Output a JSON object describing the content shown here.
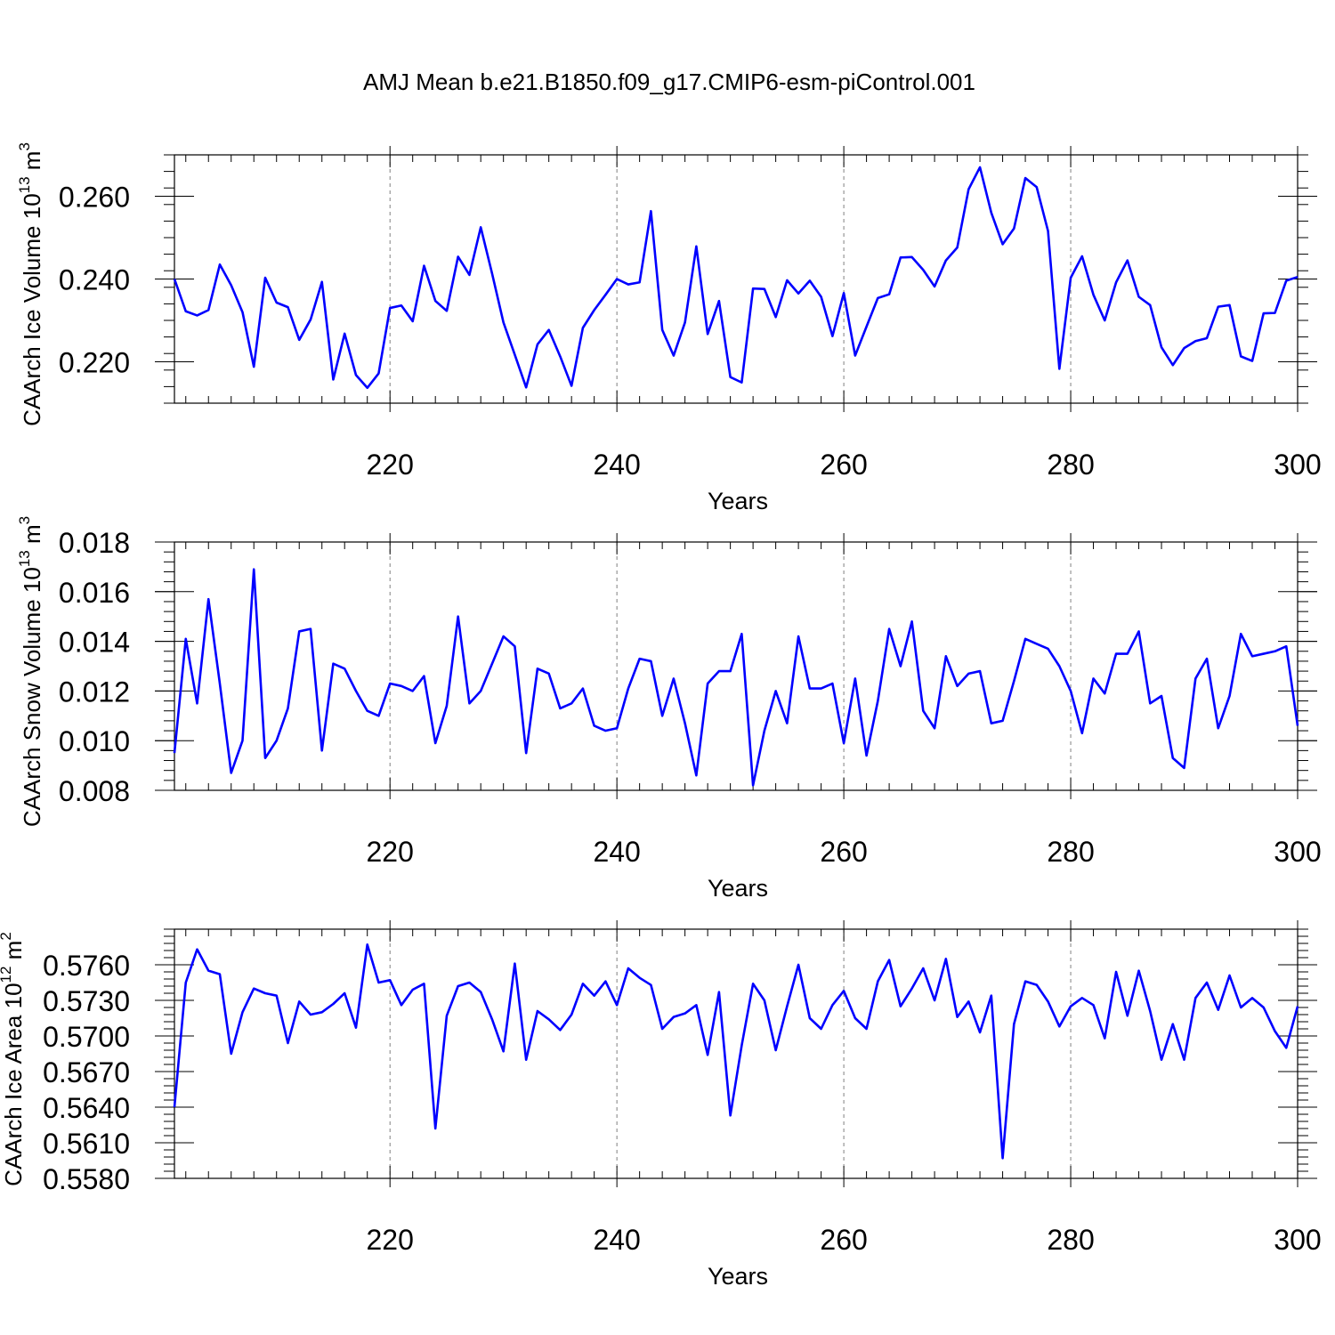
{
  "title": "AMJ Mean b.e21.B1850.f09_g17.CMIP6-esm-piControl.001",
  "colors": {
    "line": "#0000ff",
    "axis": "#000000",
    "grid": "#808080",
    "background": "#ffffff"
  },
  "chart_data": [
    {
      "type": "line",
      "ylabel_main": "CAArch Ice Volume 10",
      "ylabel_exp": "13",
      "ylabel_unit": " m",
      "ylabel_unit_exp": "3",
      "xlabel": "Years",
      "xlim": [
        201,
        300
      ],
      "ylim": [
        0.21,
        0.27
      ],
      "yticks": [
        0.22,
        0.24,
        0.26
      ],
      "ytick_labels": [
        "0.220",
        "0.240",
        "0.260"
      ],
      "xticks": [
        220,
        240,
        260,
        280,
        300
      ],
      "xtick_labels": [
        "220",
        "240",
        "260",
        "280",
        "300"
      ],
      "grid_x": [
        220,
        240,
        260,
        280
      ],
      "series": [
        {
          "name": "CAArch Ice Volume",
          "x_start": 201,
          "values": [
            0.24,
            0.2322,
            0.2312,
            0.2325,
            0.2435,
            0.2385,
            0.232,
            0.2188,
            0.2403,
            0.2343,
            0.2332,
            0.2253,
            0.2302,
            0.2393,
            0.2157,
            0.2268,
            0.2168,
            0.2137,
            0.2172,
            0.233,
            0.2336,
            0.2298,
            0.2432,
            0.2347,
            0.2323,
            0.2454,
            0.241,
            0.2525,
            0.2413,
            0.2295,
            0.2217,
            0.2138,
            0.2242,
            0.2277,
            0.2213,
            0.2142,
            0.2282,
            0.2325,
            0.2362,
            0.24,
            0.2387,
            0.2392,
            0.2564,
            0.2277,
            0.2215,
            0.2295,
            0.2479,
            0.2267,
            0.2347,
            0.2163,
            0.215,
            0.2377,
            0.2376,
            0.2308,
            0.2397,
            0.2365,
            0.2396,
            0.2357,
            0.2262,
            0.2366,
            0.2215,
            0.2285,
            0.2354,
            0.2363,
            0.2452,
            0.2453,
            0.2422,
            0.2382,
            0.2445,
            0.2476,
            0.2617,
            0.267,
            0.256,
            0.2484,
            0.2522,
            0.2644,
            0.2622,
            0.2516,
            0.2183,
            0.2403,
            0.2455,
            0.2362,
            0.23,
            0.2392,
            0.2445,
            0.2357,
            0.2337,
            0.2235,
            0.2192,
            0.2233,
            0.225,
            0.2257,
            0.2333,
            0.2337,
            0.2213,
            0.2202,
            0.2317,
            0.2318,
            0.2396,
            0.2405
          ]
        }
      ]
    },
    {
      "type": "line",
      "ylabel_main": "CAArch Snow Volume 10",
      "ylabel_exp": "13",
      "ylabel_unit": " m",
      "ylabel_unit_exp": "3",
      "xlabel": "Years",
      "xlim": [
        201,
        300
      ],
      "ylim": [
        0.008,
        0.018
      ],
      "yticks": [
        0.008,
        0.01,
        0.012,
        0.014,
        0.016,
        0.018
      ],
      "ytick_labels": [
        "0.008",
        "0.010",
        "0.012",
        "0.014",
        "0.016",
        "0.018"
      ],
      "xticks": [
        220,
        240,
        260,
        280,
        300
      ],
      "xtick_labels": [
        "220",
        "240",
        "260",
        "280",
        "300"
      ],
      "grid_x": [
        220,
        240,
        260,
        280
      ],
      "series": [
        {
          "name": "CAArch Snow Volume",
          "x_start": 201,
          "values": [
            0.0095,
            0.0141,
            0.0115,
            0.0157,
            0.0123,
            0.0087,
            0.01,
            0.0169,
            0.0093,
            0.01,
            0.0113,
            0.0144,
            0.0145,
            0.0096,
            0.0131,
            0.0129,
            0.012,
            0.0112,
            0.011,
            0.0123,
            0.0122,
            0.012,
            0.0126,
            0.0099,
            0.0114,
            0.015,
            0.0115,
            0.012,
            0.0131,
            0.0142,
            0.0138,
            0.0095,
            0.0129,
            0.0127,
            0.0113,
            0.0115,
            0.0121,
            0.0106,
            0.0104,
            0.0105,
            0.0121,
            0.0133,
            0.0132,
            0.011,
            0.0125,
            0.0107,
            0.0086,
            0.0123,
            0.0128,
            0.0128,
            0.0143,
            0.0082,
            0.0104,
            0.012,
            0.0107,
            0.0142,
            0.0121,
            0.0121,
            0.0123,
            0.0099,
            0.0125,
            0.0094,
            0.0116,
            0.0145,
            0.013,
            0.0148,
            0.0112,
            0.0105,
            0.0134,
            0.0122,
            0.0127,
            0.0128,
            0.0107,
            0.0108,
            0.0124,
            0.0141,
            0.0139,
            0.0137,
            0.013,
            0.012,
            0.0103,
            0.0125,
            0.0119,
            0.0135,
            0.0135,
            0.0144,
            0.0115,
            0.0118,
            0.0093,
            0.0089,
            0.0125,
            0.0133,
            0.0105,
            0.0118,
            0.0143,
            0.0134,
            0.0135,
            0.0136,
            0.0138,
            0.0106
          ]
        }
      ]
    },
    {
      "type": "line",
      "ylabel_main": "CAArch Ice Area 10",
      "ylabel_exp": "12",
      "ylabel_unit": " m",
      "ylabel_unit_exp": "2",
      "xlabel": "Years",
      "xlim": [
        201,
        300
      ],
      "ylim": [
        0.558,
        0.579
      ],
      "yticks": [
        0.558,
        0.561,
        0.564,
        0.567,
        0.57,
        0.573,
        0.576
      ],
      "ytick_labels": [
        "0.5580",
        "0.5610",
        "0.5640",
        "0.5670",
        "0.5700",
        "0.5730",
        "0.5760"
      ],
      "xticks": [
        220,
        240,
        260,
        280,
        300
      ],
      "xtick_labels": [
        "220",
        "240",
        "260",
        "280",
        "300"
      ],
      "grid_x": [
        220,
        240,
        260,
        280
      ],
      "series": [
        {
          "name": "CAArch Ice Area",
          "x_start": 201,
          "values": [
            0.564,
            0.5745,
            0.5773,
            0.5755,
            0.5752,
            0.5685,
            0.572,
            0.574,
            0.5736,
            0.5734,
            0.5694,
            0.5729,
            0.5718,
            0.572,
            0.5727,
            0.5736,
            0.5707,
            0.5777,
            0.5745,
            0.5747,
            0.5726,
            0.5739,
            0.5744,
            0.5622,
            0.5717,
            0.5742,
            0.5745,
            0.5737,
            0.5714,
            0.5687,
            0.5761,
            0.568,
            0.5721,
            0.5714,
            0.5705,
            0.5718,
            0.5744,
            0.5734,
            0.5746,
            0.5726,
            0.5757,
            0.5749,
            0.5743,
            0.5706,
            0.5716,
            0.5719,
            0.5726,
            0.5684,
            0.5737,
            0.5633,
            0.5692,
            0.5744,
            0.573,
            0.5688,
            0.5725,
            0.576,
            0.5715,
            0.5706,
            0.5726,
            0.5738,
            0.5715,
            0.5706,
            0.5746,
            0.5764,
            0.5725,
            0.574,
            0.5757,
            0.573,
            0.5765,
            0.5716,
            0.5729,
            0.5703,
            0.5734,
            0.5597,
            0.571,
            0.5746,
            0.5743,
            0.5729,
            0.5708,
            0.5725,
            0.5732,
            0.5726,
            0.5698,
            0.5754,
            0.5717,
            0.5755,
            0.5721,
            0.568,
            0.571,
            0.568,
            0.5732,
            0.5745,
            0.5722,
            0.5751,
            0.5724,
            0.5732,
            0.5724,
            0.5704,
            0.569,
            0.5725
          ]
        }
      ]
    }
  ]
}
